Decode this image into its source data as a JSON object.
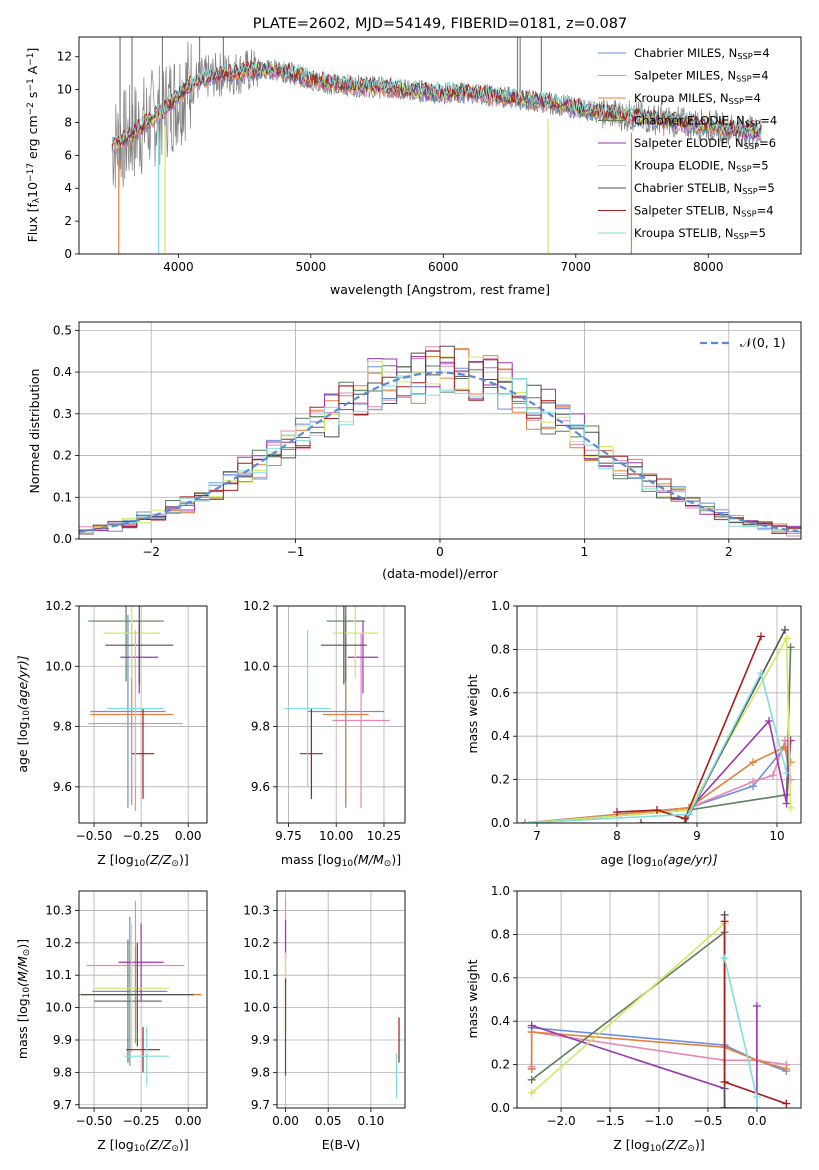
{
  "colors": {
    "chabrier_miles": "#6a8ee0",
    "salpeter_miles": "#e688b8",
    "kroupa_miles": "#e2823e",
    "chabrier_elodie": "#5a7f5a",
    "salpeter_elodie": "#9b35b0",
    "kroupa_elodie": "#d2e860",
    "chabrier_stelib": "#505050",
    "salpeter_stelib": "#a81c1c",
    "kroupa_stelib": "#82dede",
    "data": "#808080",
    "normal": "#5b8bd6",
    "grid": "#b0b0b0"
  },
  "chart_data": [
    {
      "type": "line",
      "title": "PLATE=2602, MJD=54149, FIBERID=0181, z=0.087",
      "xlabel": "wavelength [Angstrom, rest frame]",
      "ylabel_main": "Flux [f",
      "ylabel_sub": "λ",
      "ylabel_mid": "10",
      "ylabel_sup1": "−17",
      "ylabel_mid2": " erg cm",
      "ylabel_sup2": "−2",
      "ylabel_mid3": " s",
      "ylabel_sup3": "−1",
      "ylabel_mid4": " A",
      "ylabel_sup4": "−1",
      "ylabel_end": "]",
      "xlim": [
        3250,
        8700
      ],
      "ylim": [
        0,
        13.2
      ],
      "xticks": [
        4000,
        5000,
        6000,
        7000,
        8000
      ],
      "yticks": [
        0,
        2,
        4,
        6,
        8,
        10,
        12
      ],
      "grid": false,
      "legend_position": "top-right",
      "legend": [
        {
          "label": "Chabrier MILES, N",
          "sub": "SSP",
          "rest": "=4",
          "color_key": "chabrier_miles"
        },
        {
          "label": "Salpeter MILES, N",
          "sub": "SSP",
          "rest": "=4",
          "color_key": "salpeter_miles"
        },
        {
          "label": "Kroupa MILES, N",
          "sub": "SSP",
          "rest": "=4",
          "color_key": "kroupa_miles"
        },
        {
          "label": "Chabrier ELODIE, N",
          "sub": "SSP",
          "rest": "=4",
          "color_key": "chabrier_elodie"
        },
        {
          "label": "Salpeter ELODIE, N",
          "sub": "SSP",
          "rest": "=6",
          "color_key": "salpeter_elodie"
        },
        {
          "label": "Kroupa ELODIE, N",
          "sub": "SSP",
          "rest": "=5",
          "color_key": "kroupa_elodie"
        },
        {
          "label": "Chabrier STELIB, N",
          "sub": "SSP",
          "rest": "=5",
          "color_key": "chabrier_stelib"
        },
        {
          "label": "Salpeter STELIB, N",
          "sub": "SSP",
          "rest": "=4",
          "color_key": "salpeter_stelib"
        },
        {
          "label": "Kroupa STELIB, N",
          "sub": "SSP",
          "rest": "=5",
          "color_key": "kroupa_stelib"
        }
      ],
      "data_envelope": {
        "x": [
          3500,
          3600,
          3700,
          3800,
          3900,
          4000,
          4100,
          4200,
          4300,
          4400,
          4500,
          4600,
          4700,
          4800,
          4900,
          5000,
          5200,
          5400,
          5600,
          5800,
          6000,
          6200,
          6400,
          6600,
          6800,
          7000,
          7200,
          7400,
          7600,
          7800,
          8000,
          8200,
          8400
        ],
        "y": [
          6.6,
          7.0,
          7.6,
          8.2,
          8.8,
          9.6,
          10.4,
          10.7,
          10.9,
          11.0,
          11.1,
          11.2,
          11.2,
          11.1,
          10.9,
          10.6,
          10.3,
          10.2,
          10.1,
          9.9,
          9.8,
          9.8,
          9.6,
          9.4,
          9.2,
          8.9,
          8.6,
          8.4,
          8.2,
          8.0,
          7.8,
          7.6,
          7.4
        ]
      }
    },
    {
      "type": "step",
      "xlabel": "(data-model)/error",
      "ylabel": "Normed distribution",
      "xlim": [
        -2.5,
        2.5
      ],
      "ylim": [
        0,
        0.52
      ],
      "xticks": [
        -2,
        -1,
        0,
        1,
        2
      ],
      "xtick_labels": [
        "−2",
        "−1",
        "0",
        "1",
        "2"
      ],
      "yticks": [
        0.0,
        0.1,
        0.2,
        0.3,
        0.4,
        0.5
      ],
      "grid": true,
      "legend_position": "top-right",
      "legend_label": "𝒩(0, 1)",
      "hist_bin_width": 0.1,
      "hist_start": -2.5,
      "hist_base": [
        0.02,
        0.025,
        0.03,
        0.035,
        0.04,
        0.045,
        0.05,
        0.06,
        0.07,
        0.08,
        0.09,
        0.1,
        0.11,
        0.12,
        0.135,
        0.15,
        0.165,
        0.18,
        0.2,
        0.22,
        0.24,
        0.26,
        0.28,
        0.3,
        0.32,
        0.34,
        0.36,
        0.37,
        0.38,
        0.39,
        0.4,
        0.41,
        0.42,
        0.43,
        0.42,
        0.41,
        0.4,
        0.39,
        0.37,
        0.36,
        0.35,
        0.33,
        0.31,
        0.29,
        0.27,
        0.26,
        0.24,
        0.22,
        0.2,
        0.18,
        0.165,
        0.15,
        0.135,
        0.12,
        0.11,
        0.1,
        0.09,
        0.08,
        0.07,
        0.06,
        0.05,
        0.045,
        0.04,
        0.035,
        0.03,
        0.028,
        0.025,
        0.022,
        0.02,
        0.018,
        0.015,
        0.012,
        0.01,
        0.008,
        0.006,
        0.005,
        0.004,
        0.003,
        0.002,
        0.001
      ]
    },
    {
      "type": "errorbar",
      "xlabel_pre": "Z [log",
      "xlabel_sub": "10",
      "xlabel_post": "(Z/Z",
      "xlabel_sub2": "⊙",
      "xlabel_end": ")]",
      "ylabel_pre": "age  [log",
      "ylabel_sub": "10",
      "ylabel_post": "(age/yr)]",
      "xlim": [
        -0.58,
        0.1
      ],
      "ylim": [
        9.48,
        10.2
      ],
      "xticks": [
        -0.5,
        -0.25,
        0.0
      ],
      "xtick_labels": [
        "−0.50",
        "−0.25",
        "0.00"
      ],
      "yticks": [
        9.6,
        9.8,
        10.0,
        10.2
      ],
      "grid": true,
      "points": [
        {
          "color_key": "chabrier_miles",
          "x": -0.32,
          "xerr": 0.2,
          "y": 9.85,
          "yerr": 0.32
        },
        {
          "color_key": "salpeter_miles",
          "x": -0.28,
          "xerr": 0.25,
          "y": 9.81,
          "yerr": 0.29
        },
        {
          "color_key": "kroupa_miles",
          "x": -0.3,
          "xerr": 0.22,
          "y": 9.84,
          "yerr": 0.3
        },
        {
          "color_key": "chabrier_elodie",
          "x": -0.33,
          "xerr": 0.2,
          "y": 10.15,
          "yerr": 0.2
        },
        {
          "color_key": "salpeter_elodie",
          "x": -0.26,
          "xerr": 0.1,
          "y": 10.03,
          "yerr": 0.12
        },
        {
          "color_key": "kroupa_elodie",
          "x": -0.3,
          "xerr": 0.15,
          "y": 10.11,
          "yerr": 0.15
        },
        {
          "color_key": "chabrier_stelib",
          "x": -0.26,
          "xerr": 0.18,
          "y": 10.07,
          "yerr": 0.13
        },
        {
          "color_key": "salpeter_stelib",
          "x": -0.24,
          "xerr": 0.06,
          "y": 9.71,
          "yerr": 0.15
        },
        {
          "color_key": "kroupa_stelib",
          "x": -0.28,
          "xerr": 0.15,
          "y": 9.86,
          "yerr": 0.26
        }
      ]
    },
    {
      "type": "errorbar",
      "xlabel_pre": "mass [log",
      "xlabel_sub": "10",
      "xlabel_post": "(M/M",
      "xlabel_sub2": "⊙",
      "xlabel_end": ")]",
      "xlim": [
        9.69,
        10.36
      ],
      "ylim": [
        9.48,
        10.2
      ],
      "xticks": [
        9.75,
        10.0,
        10.25
      ],
      "xtick_labels": [
        "9.75",
        "10.00",
        "10.25"
      ],
      "yticks": [
        9.6,
        9.8,
        10.0,
        10.2
      ],
      "grid": true,
      "points": [
        {
          "color_key": "chabrier_miles",
          "x": 10.05,
          "xerr": 0.2,
          "y": 9.85,
          "yerr": 0.32
        },
        {
          "color_key": "salpeter_miles",
          "x": 10.13,
          "xerr": 0.15,
          "y": 9.82,
          "yerr": 0.29
        },
        {
          "color_key": "kroupa_miles",
          "x": 10.05,
          "xerr": 0.12,
          "y": 9.84,
          "yerr": 0.3
        },
        {
          "color_key": "chabrier_elodie",
          "x": 10.05,
          "xerr": 0.1,
          "y": 10.15,
          "yerr": 0.2
        },
        {
          "color_key": "salpeter_elodie",
          "x": 10.14,
          "xerr": 0.08,
          "y": 10.03,
          "yerr": 0.12
        },
        {
          "color_key": "kroupa_elodie",
          "x": 10.1,
          "xerr": 0.12,
          "y": 10.11,
          "yerr": 0.15
        },
        {
          "color_key": "chabrier_stelib",
          "x": 10.04,
          "xerr": 0.12,
          "y": 10.07,
          "yerr": 0.13
        },
        {
          "color_key": "salpeter_stelib",
          "x": 9.87,
          "xerr": 0.06,
          "y": 9.71,
          "yerr": 0.15
        },
        {
          "color_key": "kroupa_stelib",
          "x": 9.85,
          "xerr": 0.12,
          "y": 9.86,
          "yerr": 0.26
        }
      ]
    },
    {
      "type": "line",
      "xlabel_pre": "age  [log",
      "xlabel_sub": "10",
      "xlabel_post": "(age/yr)]",
      "ylabel": "mass weight",
      "xlim": [
        6.75,
        10.3
      ],
      "ylim": [
        0,
        1.0
      ],
      "xticks": [
        7,
        8,
        9,
        10
      ],
      "yticks": [
        0.0,
        0.2,
        0.4,
        0.6,
        0.8,
        1.0
      ],
      "grid": true,
      "series": [
        {
          "color_key": "chabrier_miles",
          "x": [
            6.85,
            8.9,
            9.7,
            10.1,
            10.17
          ],
          "y": [
            0.0,
            0.07,
            0.17,
            0.35,
            0.2
          ]
        },
        {
          "color_key": "salpeter_miles",
          "x": [
            6.85,
            8.9,
            9.7,
            9.95,
            10.1,
            10.17
          ],
          "y": [
            0.0,
            0.07,
            0.19,
            0.22,
            0.38,
            0.2
          ]
        },
        {
          "color_key": "kroupa_miles",
          "x": [
            6.85,
            8.9,
            9.7,
            10.1,
            10.17
          ],
          "y": [
            0.0,
            0.07,
            0.28,
            0.35,
            0.28
          ]
        },
        {
          "color_key": "chabrier_elodie",
          "x": [
            6.85,
            8.9,
            10.12,
            10.17
          ],
          "y": [
            0.0,
            0.06,
            0.13,
            0.81
          ]
        },
        {
          "color_key": "salpeter_elodie",
          "x": [
            6.85,
            8.9,
            9.9,
            10.12,
            10.17
          ],
          "y": [
            0.0,
            0.06,
            0.47,
            0.09,
            0.38
          ]
        },
        {
          "color_key": "kroupa_elodie",
          "x": [
            6.85,
            8.9,
            10.12,
            10.17
          ],
          "y": [
            0.0,
            0.06,
            0.85,
            0.07
          ]
        },
        {
          "color_key": "chabrier_stelib",
          "x": [
            8.3,
            8.85,
            10.1
          ],
          "y": [
            0.0,
            0.0,
            0.89
          ]
        },
        {
          "color_key": "salpeter_stelib",
          "x": [
            8.0,
            8.5,
            8.85,
            9.8
          ],
          "y": [
            0.05,
            0.06,
            0.02,
            0.86
          ]
        },
        {
          "color_key": "kroupa_stelib",
          "x": [
            6.85,
            8.9,
            9.8,
            10.12
          ],
          "y": [
            0.0,
            0.04,
            0.69,
            0.23
          ]
        }
      ]
    },
    {
      "type": "errorbar",
      "xlabel_pre": "Z [log",
      "xlabel_sub": "10",
      "xlabel_post": "(Z/Z",
      "xlabel_sub2": "⊙",
      "xlabel_end": ")]",
      "ylabel_pre": "mass [log",
      "ylabel_sub": "10",
      "ylabel_post": "(M/M",
      "ylabel_sub2": "⊙",
      "ylabel_end": ")]",
      "xlim": [
        -0.58,
        0.1
      ],
      "ylim": [
        9.69,
        10.36
      ],
      "xticks": [
        -0.5,
        -0.25,
        0.0
      ],
      "xtick_labels": [
        "−0.50",
        "−0.25",
        "0.00"
      ],
      "yticks": [
        9.7,
        9.8,
        9.9,
        10.0,
        10.1,
        10.2,
        10.3
      ],
      "grid": true,
      "points": [
        {
          "color_key": "chabrier_miles",
          "x": -0.31,
          "xerr": 0.2,
          "y": 10.05,
          "yerr": 0.23
        },
        {
          "color_key": "salpeter_miles",
          "x": -0.28,
          "xerr": 0.26,
          "y": 10.13,
          "yerr": 0.2
        },
        {
          "color_key": "kroupa_miles",
          "x": -0.28,
          "xerr": 0.35,
          "y": 10.04,
          "yerr": 0.15
        },
        {
          "color_key": "chabrier_elodie",
          "x": -0.32,
          "xerr": 0.18,
          "y": 10.02,
          "yerr": 0.19
        },
        {
          "color_key": "salpeter_elodie",
          "x": -0.25,
          "xerr": 0.12,
          "y": 10.14,
          "yerr": 0.12
        },
        {
          "color_key": "kroupa_elodie",
          "x": -0.3,
          "xerr": 0.2,
          "y": 10.06,
          "yerr": 0.2
        },
        {
          "color_key": "chabrier_stelib",
          "x": -0.27,
          "xerr": 0.3,
          "y": 10.04,
          "yerr": 0.16
        },
        {
          "color_key": "salpeter_stelib",
          "x": -0.24,
          "xerr": 0.09,
          "y": 9.87,
          "yerr": 0.07
        },
        {
          "color_key": "kroupa_stelib",
          "x": -0.22,
          "xerr": 0.12,
          "y": 9.85,
          "yerr": 0.09
        }
      ]
    },
    {
      "type": "errorbar",
      "xlabel": "E(B-V)",
      "xlim": [
        -0.01,
        0.14
      ],
      "ylim": [
        9.69,
        10.36
      ],
      "xticks": [
        0.0,
        0.05,
        0.1
      ],
      "xtick_labels": [
        "0.00",
        "0.05",
        "0.10"
      ],
      "yticks": [
        9.7,
        9.8,
        9.9,
        10.0,
        10.1,
        10.2,
        10.3
      ],
      "grid": true,
      "points": [
        {
          "color_key": "salpeter_miles",
          "x": 0.0,
          "y": 10.13,
          "yerr": 0.21
        },
        {
          "color_key": "salpeter_elodie",
          "x": 0.0,
          "y": 10.21,
          "yerr": 0.06
        },
        {
          "color_key": "kroupa_elodie",
          "x": 0.0,
          "y": 10.05,
          "yerr": 0.12
        },
        {
          "color_key": "chabrier_stelib",
          "x": 0.0,
          "y": 9.94,
          "yerr": 0.15
        },
        {
          "color_key": "salpeter_stelib",
          "x": 0.133,
          "y": 9.9,
          "yerr": 0.07
        },
        {
          "color_key": "kroupa_stelib",
          "x": 0.13,
          "y": 9.79,
          "yerr": 0.07
        }
      ]
    },
    {
      "type": "line",
      "xlabel_pre": "Z [log",
      "xlabel_sub": "10",
      "xlabel_post": "(Z/Z",
      "xlabel_sub2": "⊙",
      "xlabel_end": ")]",
      "ylabel": "mass weight",
      "xlim": [
        -2.45,
        0.45
      ],
      "ylim": [
        0,
        1.0
      ],
      "xticks": [
        -2.0,
        -1.5,
        -1.0,
        -0.5,
        0.0
      ],
      "xtick_labels": [
        "−2.0",
        "−1.5",
        "−1.0",
        "−0.5",
        "0.0"
      ],
      "yticks": [
        0.0,
        0.2,
        0.4,
        0.6,
        0.8,
        1.0
      ],
      "grid": true,
      "series": [
        {
          "color_key": "chabrier_miles",
          "x": [
            -2.3,
            -2.3,
            -0.33,
            0.0,
            0.3
          ],
          "y": [
            0.18,
            0.37,
            0.29,
            0.22,
            0.17
          ]
        },
        {
          "color_key": "salpeter_miles",
          "x": [
            -2.3,
            -2.3,
            -0.33,
            0.0,
            0.3
          ],
          "y": [
            0.19,
            0.35,
            0.22,
            0.22,
            0.2
          ]
        },
        {
          "color_key": "kroupa_miles",
          "x": [
            -2.3,
            -2.3,
            -0.33,
            0.0,
            0.3
          ],
          "y": [
            0.18,
            0.35,
            0.28,
            0.22,
            0.18
          ]
        },
        {
          "color_key": "chabrier_elodie",
          "x": [
            -2.3,
            -0.33,
            -0.33,
            0.0
          ],
          "y": [
            0.13,
            0.81,
            0.0,
            0.0
          ]
        },
        {
          "color_key": "salpeter_elodie",
          "x": [
            -2.3,
            -0.33,
            -0.33,
            0.0,
            0.0
          ],
          "y": [
            0.38,
            0.09,
            0.0,
            0.0,
            0.47
          ]
        },
        {
          "color_key": "kroupa_elodie",
          "x": [
            -2.3,
            -0.33,
            -0.33,
            0.0
          ],
          "y": [
            0.07,
            0.85,
            0.0,
            0.0
          ]
        },
        {
          "color_key": "chabrier_stelib",
          "x": [
            -0.33,
            -0.33,
            -0.33
          ],
          "y": [
            0.0,
            0.89,
            0.0
          ]
        },
        {
          "color_key": "salpeter_stelib",
          "x": [
            -0.33,
            -0.33,
            0.3
          ],
          "y": [
            0.86,
            0.12,
            0.02
          ]
        },
        {
          "color_key": "kroupa_stelib",
          "x": [
            -0.33,
            0.0,
            0.0
          ],
          "y": [
            0.69,
            0.05,
            0.0
          ]
        }
      ]
    }
  ]
}
